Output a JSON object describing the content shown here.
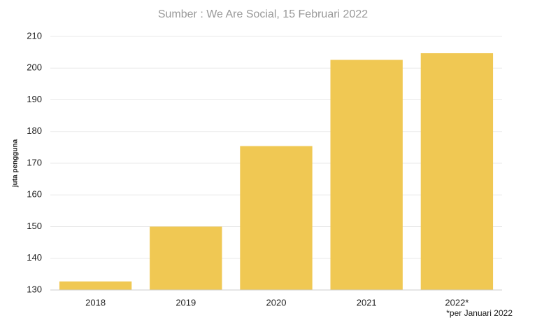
{
  "chart_data": {
    "type": "bar",
    "subtitle": "Sumber : We Are Social, 15 Februari 2022",
    "y_label": "juta pengguna",
    "note": "*per Januari 2022",
    "categories": [
      "2018",
      "2019",
      "2020",
      "2021",
      "2022*"
    ],
    "values": [
      132.7,
      150,
      175.4,
      202.6,
      204.7
    ],
    "color": "#f0c853",
    "ylim": [
      130,
      210
    ],
    "yticks": [
      130,
      140,
      150,
      160,
      170,
      180,
      190,
      200,
      210
    ],
    "grid": true
  }
}
